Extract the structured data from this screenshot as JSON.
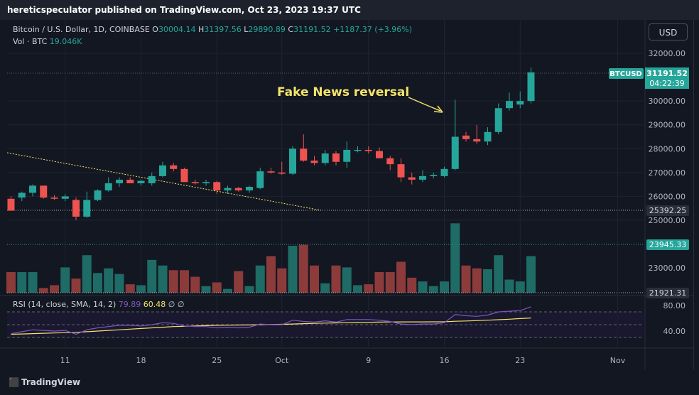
{
  "header": {
    "publisher_line": "hereticspeculator published on TradingView.com, Oct 23, 2023 19:37 UTC"
  },
  "legend": {
    "symbol": "Bitcoin / U.S. Dollar, 1D, COINBASE",
    "open_label": "O",
    "open": "30004.14",
    "high_label": "H",
    "high": "31397.56",
    "low_label": "L",
    "low": "29890.89",
    "close_label": "C",
    "close": "31191.52",
    "change": "+1187.37 (+3.96%)",
    "vol_label": "Vol · BTC",
    "vol": "19.046K"
  },
  "rsi_legend": {
    "label": "RSI (14, close, SMA, 14, 2)",
    "rsi": "79.89",
    "sma": "60.48",
    "extra": "∅  ∅"
  },
  "currency_button": "USD",
  "annotation": "Fake News reversal",
  "badges": {
    "price": {
      "symbol": "BTCUSD",
      "value": "31191.52",
      "countdown": "04:22:39"
    },
    "level1": "25392.25",
    "level2": "23945.33",
    "level3": "21921.31"
  },
  "footer": {
    "brand": "TradingView",
    "logo_icon": "tradingview-logo-icon"
  },
  "colors": {
    "up": "#26a69a",
    "down": "#ef5350",
    "bg": "#131722",
    "rsi": "#7e57c2",
    "sma": "#f5e46a",
    "trend": "#f5e46a"
  },
  "chart_data": {
    "type": "candlestick",
    "title": "Bitcoin / U.S. Dollar, 1D, COINBASE",
    "price_ticks": [
      "32000.00",
      "30000.00",
      "29000.00",
      "28000.00",
      "27000.00",
      "26000.00",
      "25000.00",
      "23000.00"
    ],
    "price_range": [
      23000,
      32000
    ],
    "x_ticks": [
      {
        "label": "11",
        "index": 5
      },
      {
        "label": "18",
        "index": 12
      },
      {
        "label": "25",
        "index": 19
      },
      {
        "label": "Oct",
        "index": 25
      },
      {
        "label": "9",
        "index": 33
      },
      {
        "label": "16",
        "index": 40
      },
      {
        "label": "23",
        "index": 47
      },
      {
        "label": "Nov",
        "index": 56
      }
    ],
    "candles": [
      {
        "o": 25900,
        "h": 26000,
        "l": 25450,
        "c": 25400
      },
      {
        "o": 25950,
        "h": 26200,
        "l": 25800,
        "c": 26150
      },
      {
        "o": 26150,
        "h": 26500,
        "l": 26000,
        "c": 26450
      },
      {
        "o": 26450,
        "h": 26450,
        "l": 25900,
        "c": 25950
      },
      {
        "o": 25950,
        "h": 26050,
        "l": 25850,
        "c": 25900
      },
      {
        "o": 25900,
        "h": 26100,
        "l": 25800,
        "c": 26000
      },
      {
        "o": 25850,
        "h": 25950,
        "l": 25000,
        "c": 25150
      },
      {
        "o": 25150,
        "h": 26200,
        "l": 25100,
        "c": 25850
      },
      {
        "o": 25850,
        "h": 26300,
        "l": 25800,
        "c": 26250
      },
      {
        "o": 26250,
        "h": 26800,
        "l": 26200,
        "c": 26550
      },
      {
        "o": 26550,
        "h": 26800,
        "l": 26400,
        "c": 26700
      },
      {
        "o": 26700,
        "h": 26800,
        "l": 26550,
        "c": 26550
      },
      {
        "o": 26550,
        "h": 26700,
        "l": 26450,
        "c": 26650
      },
      {
        "o": 26550,
        "h": 27000,
        "l": 26450,
        "c": 26850
      },
      {
        "o": 26850,
        "h": 27450,
        "l": 26800,
        "c": 27300
      },
      {
        "o": 27300,
        "h": 27400,
        "l": 27050,
        "c": 27150
      },
      {
        "o": 27150,
        "h": 27200,
        "l": 26600,
        "c": 26600
      },
      {
        "o": 26600,
        "h": 26700,
        "l": 26500,
        "c": 26550
      },
      {
        "o": 26550,
        "h": 26700,
        "l": 26450,
        "c": 26600
      },
      {
        "o": 26600,
        "h": 26650,
        "l": 26100,
        "c": 26250
      },
      {
        "o": 26250,
        "h": 26450,
        "l": 26100,
        "c": 26350
      },
      {
        "o": 26350,
        "h": 26400,
        "l": 26200,
        "c": 26250
      },
      {
        "o": 26250,
        "h": 26450,
        "l": 26150,
        "c": 26400
      },
      {
        "o": 26350,
        "h": 27200,
        "l": 26300,
        "c": 27050
      },
      {
        "o": 27050,
        "h": 27200,
        "l": 26950,
        "c": 27000
      },
      {
        "o": 27000,
        "h": 27450,
        "l": 26900,
        "c": 26950
      },
      {
        "o": 26950,
        "h": 28100,
        "l": 26900,
        "c": 28000
      },
      {
        "o": 28000,
        "h": 28600,
        "l": 27450,
        "c": 27500
      },
      {
        "o": 27500,
        "h": 27700,
        "l": 27300,
        "c": 27400
      },
      {
        "o": 27400,
        "h": 27950,
        "l": 27300,
        "c": 27800
      },
      {
        "o": 27800,
        "h": 27900,
        "l": 27300,
        "c": 27450
      },
      {
        "o": 27450,
        "h": 28300,
        "l": 27200,
        "c": 27950
      },
      {
        "o": 27950,
        "h": 28100,
        "l": 27850,
        "c": 27950
      },
      {
        "o": 27950,
        "h": 28100,
        "l": 27800,
        "c": 27900
      },
      {
        "o": 27900,
        "h": 28050,
        "l": 27600,
        "c": 27600
      },
      {
        "o": 27600,
        "h": 27700,
        "l": 27100,
        "c": 27350
      },
      {
        "o": 27350,
        "h": 27600,
        "l": 26600,
        "c": 26800
      },
      {
        "o": 26800,
        "h": 27000,
        "l": 26500,
        "c": 26700
      },
      {
        "o": 26700,
        "h": 27100,
        "l": 26600,
        "c": 26850
      },
      {
        "o": 26850,
        "h": 27000,
        "l": 26750,
        "c": 26900
      },
      {
        "o": 26850,
        "h": 27250,
        "l": 26800,
        "c": 27150
      },
      {
        "o": 27150,
        "h": 30050,
        "l": 27100,
        "c": 28500
      },
      {
        "o": 28550,
        "h": 28700,
        "l": 28300,
        "c": 28400
      },
      {
        "o": 28400,
        "h": 29000,
        "l": 28200,
        "c": 28300
      },
      {
        "o": 28300,
        "h": 28900,
        "l": 28150,
        "c": 28700
      },
      {
        "o": 28700,
        "h": 29900,
        "l": 28600,
        "c": 29700
      },
      {
        "o": 29700,
        "h": 30350,
        "l": 29600,
        "c": 30000
      },
      {
        "o": 29850,
        "h": 30400,
        "l": 29700,
        "c": 30000
      },
      {
        "o": 30000,
        "h": 31400,
        "l": 29900,
        "c": 31200
      }
    ],
    "volume": {
      "levels": [
        21921.31,
        23945.33,
        25392.25
      ],
      "bars": [
        0.22,
        0.22,
        0.22,
        0.05,
        0.08,
        0.27,
        0.15,
        0.4,
        0.21,
        0.26,
        0.2,
        0.09,
        0.08,
        0.35,
        0.29,
        0.24,
        0.24,
        0.17,
        0.07,
        0.11,
        0.04,
        0.23,
        0.07,
        0.29,
        0.39,
        0.26,
        0.5,
        0.51,
        0.29,
        0.1,
        0.29,
        0.27,
        0.08,
        0.09,
        0.22,
        0.22,
        0.33,
        0.16,
        0.12,
        0.07,
        0.12,
        0.74,
        0.29,
        0.26,
        0.25,
        0.4,
        0.14,
        0.12,
        0.39
      ]
    },
    "rsi": {
      "ticks": [
        "80.00",
        "40.00"
      ],
      "range": [
        0,
        100
      ],
      "bands": [
        70,
        50,
        30
      ],
      "rsi_values": [
        36,
        39,
        42,
        41,
        40,
        41,
        35,
        42,
        45,
        47,
        49,
        49,
        48,
        50,
        53,
        52,
        48,
        47,
        47,
        45,
        46,
        45,
        46,
        51,
        50,
        50,
        57,
        55,
        54,
        56,
        54,
        58,
        58,
        58,
        57,
        55,
        51,
        50,
        51,
        51,
        53,
        66,
        64,
        63,
        65,
        70,
        71,
        72,
        78
      ],
      "sma_values": [
        35,
        35.5,
        36,
        36.5,
        37,
        37.5,
        38,
        39,
        40,
        41,
        42,
        43,
        44,
        45,
        46,
        47,
        47.5,
        48,
        48.5,
        49,
        49.2,
        49.4,
        49.6,
        50,
        50.3,
        50.6,
        51,
        51.5,
        52,
        52.4,
        52.8,
        53.1,
        53.4,
        53.7,
        54,
        54.2,
        54.3,
        54.3,
        54.3,
        54.4,
        54.6,
        55.3,
        55.8,
        56.3,
        57,
        57.8,
        58.6,
        59.5,
        60.5
      ]
    }
  }
}
